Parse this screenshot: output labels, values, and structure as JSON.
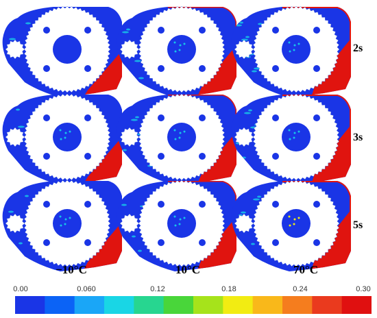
{
  "row_labels": [
    "2s",
    "3s",
    "5s"
  ],
  "column_labels": [
    "−10°C",
    "10°C",
    "70°C"
  ],
  "colorbar": {
    "ticks": [
      "0.00",
      "0.060",
      "0.12",
      "0.18",
      "0.24",
      "0.30"
    ],
    "colors": [
      "#1a35e6",
      "#0b63f6",
      "#1aa6f7",
      "#19d6e5",
      "#27d690",
      "#49d63a",
      "#a6e31b",
      "#f2ec12",
      "#f9b81a",
      "#f57d1e",
      "#ea3a1e",
      "#e01010"
    ]
  },
  "colors": {
    "background": "#ffffff",
    "fluid_low": "#1a35e6",
    "fluid_mid": "#17c4e8",
    "fluid_high": "#e0140f",
    "gear": "#ffffff"
  }
}
